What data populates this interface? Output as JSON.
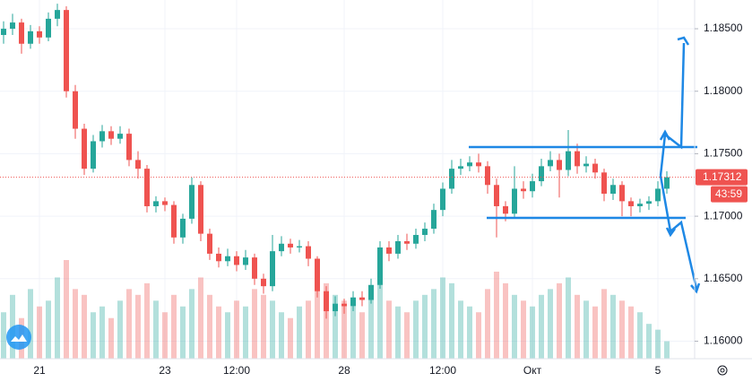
{
  "chart_data": {
    "type": "candlestick",
    "categories": [
      null,
      null,
      null,
      null,
      "21",
      null,
      null,
      null,
      null,
      null,
      null,
      null,
      null,
      null,
      null,
      null,
      null,
      null,
      "23",
      null,
      null,
      null,
      null,
      null,
      null,
      null,
      "12:00",
      null,
      null,
      null,
      null,
      null,
      null,
      null,
      null,
      null,
      null,
      null,
      "28",
      null,
      null,
      null,
      null,
      null,
      null,
      null,
      null,
      null,
      null,
      "12:00",
      null,
      null,
      null,
      null,
      null,
      null,
      null,
      null,
      null,
      "Окт",
      null,
      null,
      null,
      null,
      null,
      null,
      null,
      null,
      null,
      null,
      null,
      null,
      null,
      "5",
      null
    ],
    "open": [
      1.1845,
      1.185,
      1.1855,
      1.1838,
      1.1848,
      1.1843,
      1.1858,
      1.1865,
      1.18,
      1.177,
      1.1738,
      1.176,
      1.1768,
      1.1762,
      1.1766,
      1.1745,
      1.1738,
      1.1708,
      1.1712,
      1.1709,
      1.1683,
      1.1698,
      1.1725,
      1.1686,
      1.167,
      1.1664,
      1.1668,
      1.1661,
      1.1667,
      1.165,
      1.1644,
      1.1672,
      1.1678,
      1.1675,
      1.1676,
      1.1666,
      1.164,
      1.1624,
      1.163,
      1.1628,
      1.1635,
      1.1633,
      1.1645,
      1.1675,
      1.167,
      1.168,
      1.1678,
      1.1685,
      1.169,
      1.1705,
      1.1722,
      1.1738,
      1.174,
      1.1743,
      1.174,
      1.1725,
      1.1708,
      1.1702,
      1.1722,
      1.172,
      1.1728,
      1.174,
      1.1745,
      1.1737,
      1.1752,
      1.174,
      1.1742,
      1.1735,
      1.1718,
      1.1725,
      1.1712,
      1.1708,
      1.171,
      1.1712,
      1.1722
    ],
    "high": [
      1.1856,
      1.1862,
      1.1858,
      1.1853,
      1.1852,
      1.1863,
      1.187,
      1.1868,
      1.1805,
      1.1774,
      1.1765,
      1.1773,
      1.1772,
      1.1772,
      1.177,
      1.1752,
      1.1741,
      1.1716,
      1.1715,
      1.1712,
      1.1702,
      1.1731,
      1.1728,
      1.169,
      1.1675,
      1.1674,
      1.1672,
      1.1673,
      1.167,
      1.1654,
      1.1685,
      1.1684,
      1.1682,
      1.1681,
      1.168,
      1.1668,
      1.1644,
      1.1636,
      1.1634,
      1.164,
      1.164,
      1.165,
      1.168,
      1.168,
      1.1685,
      1.1686,
      1.169,
      1.1695,
      1.171,
      1.1727,
      1.1745,
      1.1746,
      1.1748,
      1.175,
      1.1744,
      1.173,
      1.1712,
      1.174,
      1.1728,
      1.1734,
      1.1746,
      1.1752,
      1.175,
      1.1769,
      1.1758,
      1.1748,
      1.1746,
      1.1738,
      1.173,
      1.1728,
      1.1715,
      1.1714,
      1.1716,
      1.1728,
      1.1736
    ],
    "low": [
      1.1838,
      1.1845,
      1.183,
      1.1834,
      1.1838,
      1.184,
      1.1852,
      1.1795,
      1.1762,
      1.1733,
      1.1735,
      1.1755,
      1.1757,
      1.1758,
      1.174,
      1.173,
      1.1703,
      1.1703,
      1.1704,
      1.1678,
      1.1678,
      1.1694,
      1.168,
      1.1665,
      1.1659,
      1.166,
      1.1656,
      1.1657,
      1.1645,
      1.1638,
      1.164,
      1.1668,
      1.167,
      1.1671,
      1.166,
      1.1635,
      1.1618,
      1.162,
      1.1622,
      1.1624,
      1.1628,
      1.163,
      1.1642,
      1.1664,
      1.1666,
      1.1673,
      1.1674,
      1.168,
      1.1686,
      1.17,
      1.1718,
      1.1733,
      1.1736,
      1.1735,
      1.1718,
      1.1683,
      1.1696,
      1.1698,
      1.1714,
      1.1715,
      1.1724,
      1.1736,
      1.1715,
      1.1732,
      1.1734,
      1.1735,
      1.173,
      1.1712,
      1.1713,
      1.17,
      1.17,
      1.1703,
      1.1705,
      1.1708,
      1.1718
    ],
    "close": [
      1.185,
      1.1855,
      1.1838,
      1.1848,
      1.1843,
      1.1858,
      1.1865,
      1.18,
      1.177,
      1.1738,
      1.176,
      1.1768,
      1.1762,
      1.1766,
      1.1745,
      1.1738,
      1.1708,
      1.1712,
      1.1709,
      1.1683,
      1.1698,
      1.1725,
      1.1686,
      1.167,
      1.1664,
      1.1668,
      1.1661,
      1.1667,
      1.165,
      1.1644,
      1.1672,
      1.1678,
      1.1675,
      1.1676,
      1.1666,
      1.164,
      1.1624,
      1.163,
      1.1628,
      1.1635,
      1.1633,
      1.1645,
      1.1675,
      1.167,
      1.168,
      1.1678,
      1.1685,
      1.169,
      1.1705,
      1.1722,
      1.1738,
      1.174,
      1.1743,
      1.174,
      1.1725,
      1.1708,
      1.1702,
      1.1722,
      1.172,
      1.1728,
      1.174,
      1.1745,
      1.1737,
      1.1752,
      1.174,
      1.1742,
      1.1735,
      1.1718,
      1.1725,
      1.1712,
      1.1708,
      1.171,
      1.1712,
      1.1722,
      1.17312
    ],
    "volume": [
      40,
      55,
      35,
      60,
      45,
      50,
      70,
      85,
      60,
      55,
      40,
      45,
      35,
      50,
      60,
      55,
      65,
      50,
      40,
      55,
      45,
      60,
      70,
      55,
      45,
      40,
      50,
      45,
      60,
      55,
      50,
      40,
      35,
      45,
      50,
      60,
      65,
      55,
      50,
      45,
      40,
      55,
      65,
      50,
      45,
      40,
      50,
      55,
      60,
      70,
      65,
      50,
      45,
      40,
      60,
      75,
      65,
      55,
      50,
      45,
      55,
      60,
      65,
      70,
      55,
      50,
      45,
      60,
      55,
      50,
      45,
      40,
      30,
      25,
      15
    ],
    "ylim": [
      1.1586,
      1.1873
    ],
    "yticks": [
      {
        "value": 1.185,
        "label": "1.18500"
      },
      {
        "value": 1.18,
        "label": "1.18000"
      },
      {
        "value": 1.175,
        "label": "1.17500"
      },
      {
        "value": 1.17,
        "label": "1.17000"
      },
      {
        "value": 1.165,
        "label": "1.16500"
      },
      {
        "value": 1.16,
        "label": "1.16000"
      }
    ],
    "up_color": "#26a69a",
    "down_color": "#ef5350",
    "grid": true,
    "countdown": "43:59"
  }
}
